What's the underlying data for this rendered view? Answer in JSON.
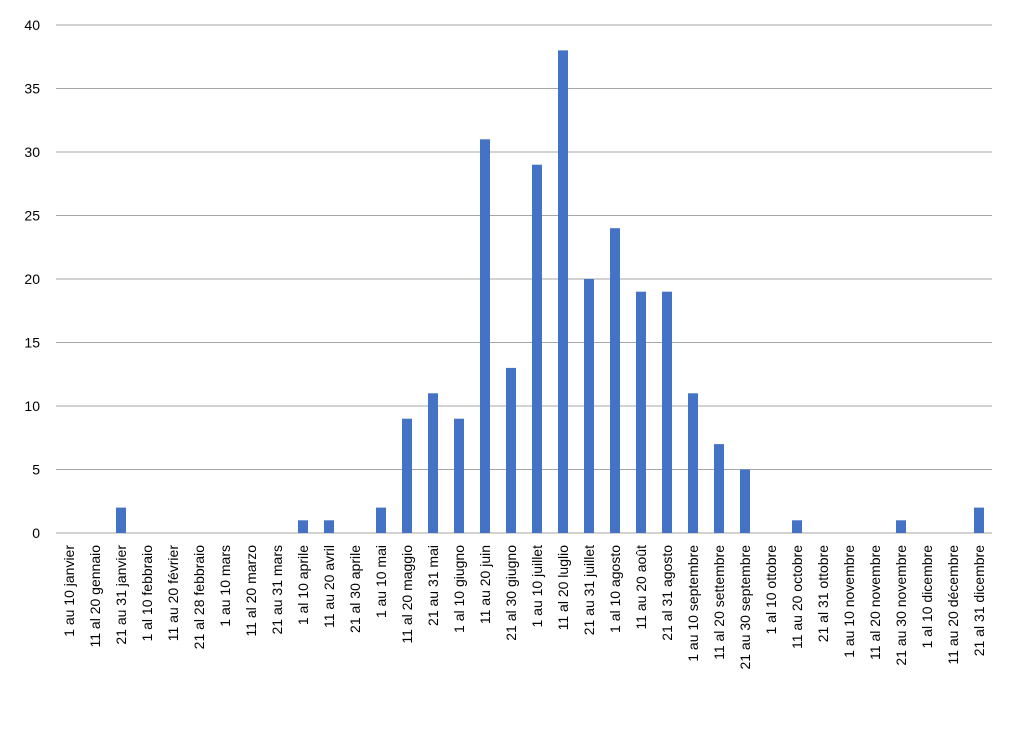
{
  "chart_data": {
    "type": "bar",
    "categories": [
      "1 au 10 janvier",
      "11 al 20 gennaio",
      "21 au 31 janvier",
      "1 al 10 febbraio",
      "11 au 20 février",
      "21 al 28 febbraio",
      "1 au 10 mars",
      "11 al 20 marzo",
      "21 au 31 mars",
      "1 al 10 aprile",
      "11 au 20 avril",
      "21 al 30 aprile",
      "1 au 10 mai",
      "11 al 20 maggio",
      "21 au 31 mai",
      "1 al 10 giugno",
      "11 au 20 juin",
      "21 al 30 giugno",
      "1 au 10 juillet",
      "11 al 20 luglio",
      "21 au 31 juillet",
      "1 al 10 agosto",
      "11 au 20 août",
      "21 al 31 agosto",
      "1 au 10 septembre",
      "11 al 20 settembre",
      "21 au 30 septembre",
      "1 al 10 ottobre",
      "11 au 20 octobre",
      "21 al 31 ottobre",
      "1 au 10 novembre",
      "11 al 20 novembre",
      "21 au 30 novembre",
      "1 al 10 dicembre",
      "11 au 20 décembre",
      "21 al 31 dicembre"
    ],
    "values": [
      0,
      0,
      2,
      0,
      0,
      0,
      0,
      0,
      0,
      1,
      1,
      0,
      2,
      9,
      11,
      9,
      31,
      13,
      29,
      38,
      20,
      24,
      19,
      19,
      11,
      7,
      5,
      0,
      1,
      0,
      0,
      0,
      1,
      0,
      0,
      2
    ],
    "color": "#4472c4",
    "ylim": [
      0,
      40
    ],
    "yticks": [
      0,
      5,
      10,
      15,
      20,
      25,
      30,
      35,
      40
    ],
    "grid": true
  }
}
